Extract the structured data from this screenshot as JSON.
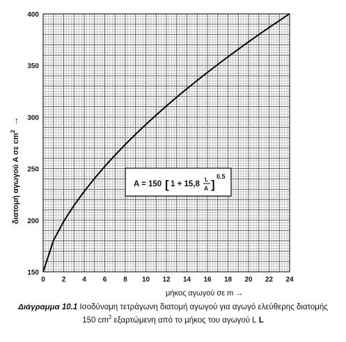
{
  "chart_data": {
    "type": "line",
    "x": [
      0,
      1,
      2,
      3,
      4,
      5,
      6,
      7,
      8,
      9,
      10,
      11,
      12,
      13,
      14,
      15,
      16,
      17,
      18,
      19,
      20,
      21,
      22,
      23,
      24
    ],
    "series": [
      {
        "values": [
          150.0,
          180.3,
          198.9,
          214.3,
          228.0,
          240.5,
          252.2,
          263.1,
          273.5,
          283.4,
          292.8,
          301.9,
          310.7,
          319.2,
          327.5,
          335.5,
          343.3,
          350.9,
          358.4,
          365.7,
          372.9,
          379.9,
          386.8,
          393.5,
          400.2
        ]
      }
    ],
    "xlim": [
      0,
      24
    ],
    "ylim": [
      150,
      400
    ],
    "xticks": [
      0,
      2,
      4,
      6,
      8,
      10,
      12,
      14,
      16,
      18,
      20,
      22,
      24
    ],
    "yticks": [
      150,
      200,
      250,
      300,
      350,
      400
    ],
    "xlabel": "μήκος αγωγού σε m →",
    "ylabel": "διατομή αγωγού A σε cm",
    "ylabel_sup": "2",
    "ylabel_arrow": "→",
    "grid": true,
    "annotation": {
      "lhs": "A = 150",
      "bracket_open": "[",
      "term": "1 + 15,8",
      "frac_num": "L",
      "frac_den": "A",
      "bracket_close": "]",
      "exponent": "0.5"
    }
  },
  "caption": {
    "label": "Διάγραμμα 10.1",
    "line1_text": "Ισοδύναμη τετράγωνη διατομή αγωγού για αγωγό ελεύθερης διατομής",
    "line2_pre": "150 cm",
    "line2_sup": "2",
    "line2_post": " εξαρτώμενη από το μήκος του αγωγού L"
  },
  "colors": {
    "grid_major": "#555555",
    "grid_minor": "#9a9a9a",
    "curve": "#000000"
  }
}
